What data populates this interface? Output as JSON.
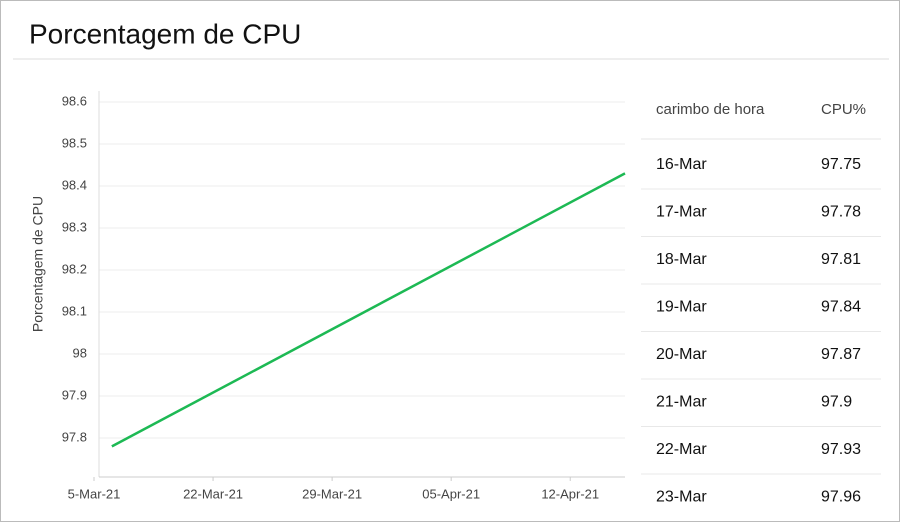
{
  "header": {
    "title": "Porcentagem de CPU"
  },
  "chart_data": {
    "type": "line",
    "ylabel": "Porcentagem de CPU",
    "x": [
      0.15,
      4.46
    ],
    "series": [
      {
        "name": "CPU",
        "color": "#1db954",
        "values": [
          97.78,
          98.43
        ]
      }
    ],
    "xlim": [
      0,
      4.46
    ],
    "xticks": [
      {
        "value": 0,
        "label": "5-Mar-21"
      },
      {
        "value": 1,
        "label": "22-Mar-21"
      },
      {
        "value": 2,
        "label": "29-Mar-21"
      },
      {
        "value": 3,
        "label": "05-Apr-21"
      },
      {
        "value": 4,
        "label": "12-Apr-21"
      }
    ],
    "ylim": [
      97.7,
      98.6
    ],
    "yticks": [
      97.8,
      97.9,
      98,
      98.1,
      98.2,
      98.3,
      98.4,
      98.5,
      98.6
    ],
    "grid": true
  },
  "table": {
    "header": [
      "carimbo de hora",
      "CPU%"
    ],
    "rows": [
      [
        "16-Mar",
        97.75
      ],
      [
        "17-Mar",
        97.78
      ],
      [
        "18-Mar",
        97.81
      ],
      [
        "19-Mar",
        97.84
      ],
      [
        "20-Mar",
        97.87
      ],
      [
        "21-Mar",
        97.9
      ],
      [
        "22-Mar",
        97.93
      ],
      [
        "23-Mar",
        97.96
      ]
    ]
  }
}
